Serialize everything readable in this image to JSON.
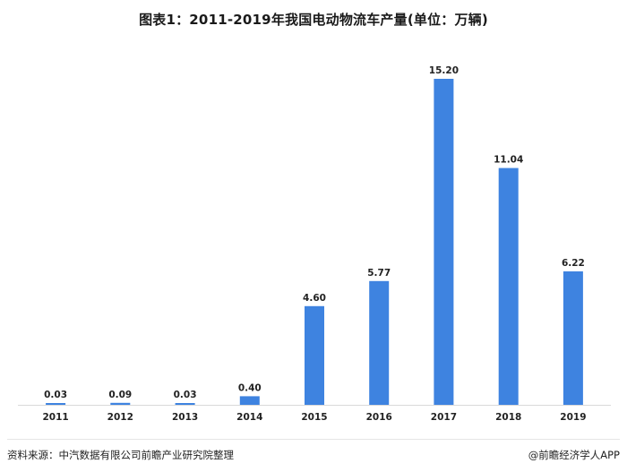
{
  "title": "图表1：2011-2019年我国电动物流车产量(单位：万辆)",
  "source": "资料来源：中汽数据有限公司前瞻产业研究院整理",
  "brand": "@前瞻经济学人APP",
  "colors": {
    "bar": "#3e83e0",
    "axis": "#d9d9d9"
  },
  "chart_data": {
    "type": "bar",
    "categories": [
      "2011",
      "2012",
      "2013",
      "2014",
      "2015",
      "2016",
      "2017",
      "2018",
      "2019"
    ],
    "values": [
      0.03,
      0.09,
      0.03,
      0.4,
      4.6,
      5.77,
      15.2,
      11.04,
      6.22
    ],
    "value_labels": [
      "0.03",
      "0.09",
      "0.03",
      "0.40",
      "4.60",
      "5.77",
      "15.20",
      "11.04",
      "6.22"
    ],
    "title": "图表1：2011-2019年我国电动物流车产量(单位：万辆)",
    "ylim": [
      0,
      15.2
    ],
    "grid": false,
    "legend": "none"
  }
}
